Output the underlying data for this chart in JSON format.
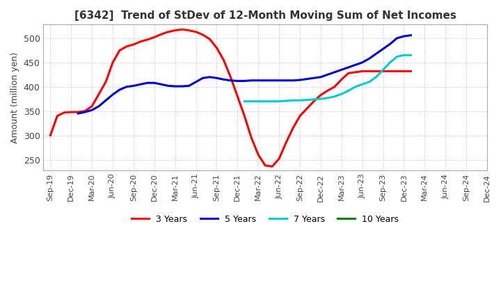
{
  "title": "[6342]  Trend of StDev of 12-Month Moving Sum of Net Incomes",
  "ylabel": "Amount (million yen)",
  "ylim": [
    228,
    528
  ],
  "yticks": [
    250,
    300,
    350,
    400,
    450,
    500
  ],
  "background_color": "#ffffff",
  "grid_color": "#bbbbbb",
  "series": {
    "3 Years": {
      "color": "#ff0000",
      "x": [
        0,
        1,
        2,
        3,
        4,
        5,
        6,
        7,
        8,
        9,
        10,
        11,
        12,
        13,
        14,
        15,
        16,
        17,
        18,
        19,
        20,
        21,
        22,
        23,
        24,
        25,
        26,
        27,
        28,
        29,
        30,
        31,
        32,
        33,
        34,
        35,
        36,
        37,
        38,
        39,
        40,
        41,
        42,
        43,
        44,
        45,
        46,
        47,
        48,
        49,
        50,
        51,
        52
      ],
      "y": [
        300,
        340,
        347,
        348,
        348,
        350,
        360,
        385,
        410,
        450,
        475,
        483,
        487,
        493,
        497,
        502,
        508,
        513,
        516,
        518,
        516,
        513,
        507,
        498,
        480,
        455,
        420,
        380,
        340,
        295,
        260,
        238,
        236,
        252,
        285,
        315,
        340,
        355,
        370,
        383,
        392,
        400,
        415,
        428,
        430,
        432,
        432,
        432,
        432,
        432,
        432,
        432,
        432
      ]
    },
    "5 Years": {
      "color": "#0000cc",
      "x": [
        4,
        5,
        6,
        7,
        8,
        9,
        10,
        11,
        12,
        13,
        14,
        15,
        16,
        17,
        18,
        19,
        20,
        21,
        22,
        23,
        24,
        25,
        26,
        27,
        28,
        29,
        30,
        31,
        32,
        33,
        34,
        35,
        36,
        37,
        38,
        39,
        40,
        41,
        42,
        43,
        44,
        45,
        46,
        47,
        48,
        49,
        50,
        51,
        52
      ],
      "y": [
        345,
        348,
        352,
        360,
        372,
        384,
        394,
        400,
        402,
        405,
        408,
        408,
        405,
        402,
        401,
        401,
        402,
        410,
        418,
        420,
        418,
        415,
        413,
        412,
        412,
        413,
        413,
        413,
        413,
        413,
        413,
        413,
        414,
        416,
        418,
        420,
        425,
        430,
        435,
        440,
        445,
        450,
        458,
        468,
        478,
        488,
        500,
        504,
        506
      ]
    },
    "7 Years": {
      "color": "#00cccc",
      "x": [
        28,
        29,
        30,
        31,
        32,
        33,
        34,
        35,
        36,
        37,
        38,
        39,
        40,
        41,
        42,
        43,
        44,
        45,
        46,
        47,
        48,
        49,
        50,
        51,
        52
      ],
      "y": [
        370,
        370,
        370,
        370,
        370,
        370,
        371,
        372,
        372,
        373,
        374,
        375,
        377,
        380,
        385,
        392,
        400,
        405,
        410,
        420,
        435,
        450,
        462,
        465,
        465
      ]
    },
    "10 Years": {
      "color": "#008000",
      "x": [],
      "y": []
    }
  },
  "xtick_labels": [
    "Sep-19",
    "Dec-19",
    "Mar-20",
    "Jun-20",
    "Sep-20",
    "Dec-20",
    "Mar-21",
    "Jun-21",
    "Sep-21",
    "Dec-21",
    "Mar-22",
    "Jun-22",
    "Sep-22",
    "Dec-22",
    "Mar-23",
    "Jun-23",
    "Sep-23",
    "Dec-23",
    "Mar-24",
    "Jun-24",
    "Sep-24",
    "Dec-24"
  ],
  "xtick_positions": [
    0,
    3,
    6,
    9,
    12,
    15,
    18,
    21,
    24,
    27,
    30,
    33,
    36,
    39,
    42,
    45,
    48,
    51,
    54,
    57,
    60,
    63
  ],
  "legend_entries": [
    "3 Years",
    "5 Years",
    "7 Years",
    "10 Years"
  ],
  "legend_colors": [
    "#ff0000",
    "#0000cc",
    "#00cccc",
    "#008000"
  ]
}
